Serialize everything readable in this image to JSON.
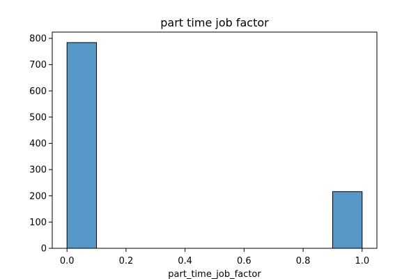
{
  "chart_data": {
    "type": "bar",
    "title": "part time job factor",
    "xlabel": "part_time_job_factor",
    "ylabel": "",
    "xlim": [
      -0.05,
      1.05
    ],
    "ylim": [
      0,
      824
    ],
    "grid": false,
    "bins": [
      {
        "x0": 0.0,
        "x1": 0.1,
        "count": 784
      },
      {
        "x0": 0.9,
        "x1": 1.0,
        "count": 216
      }
    ],
    "x_ticks": [
      {
        "value": 0.0,
        "label": "0.0"
      },
      {
        "value": 0.2,
        "label": "0.2"
      },
      {
        "value": 0.4,
        "label": "0.4"
      },
      {
        "value": 0.6,
        "label": "0.6"
      },
      {
        "value": 0.8,
        "label": "0.8"
      },
      {
        "value": 1.0,
        "label": "1.0"
      }
    ],
    "y_ticks": [
      {
        "value": 0,
        "label": "0"
      },
      {
        "value": 100,
        "label": "100"
      },
      {
        "value": 200,
        "label": "200"
      },
      {
        "value": 300,
        "label": "300"
      },
      {
        "value": 400,
        "label": "400"
      },
      {
        "value": 500,
        "label": "500"
      },
      {
        "value": 600,
        "label": "600"
      },
      {
        "value": 700,
        "label": "700"
      },
      {
        "value": 800,
        "label": "800"
      }
    ],
    "colors": {
      "bar_fill": "#5598c8",
      "bar_edge": "#000000",
      "axis": "#000000",
      "background": "#ffffff"
    }
  }
}
